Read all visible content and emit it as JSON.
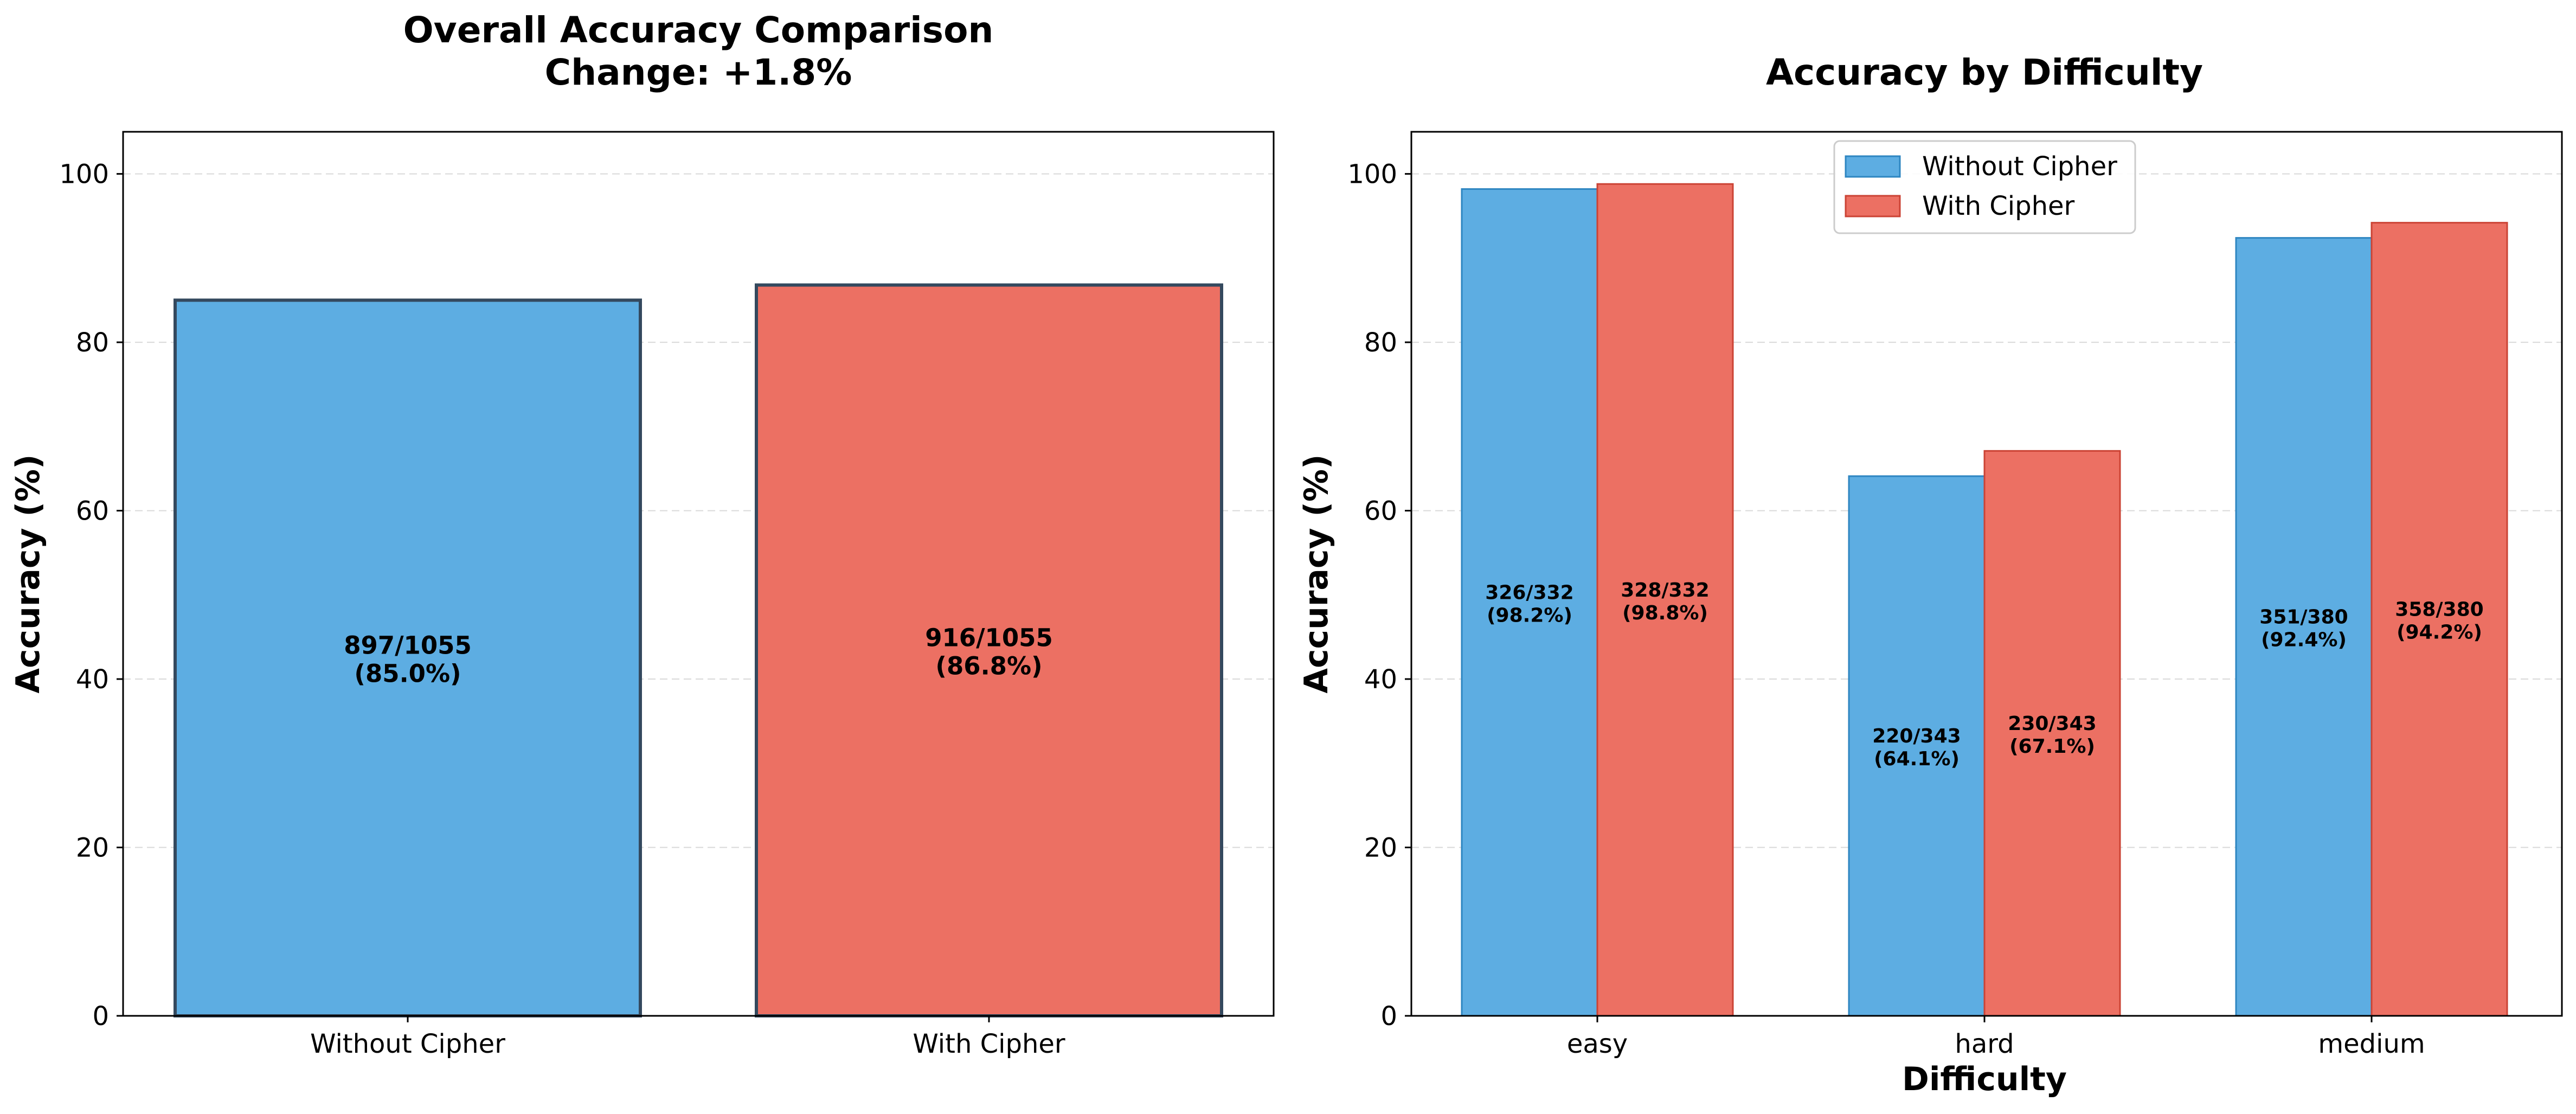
{
  "colors": {
    "without_cipher": "#5DADE2",
    "with_cipher": "#EC7063",
    "bar_edge_left": "#34495E",
    "bar_edge_blue": "#2E86C1",
    "bar_edge_red": "#CB4335",
    "grid": "#d9d9d9"
  },
  "chart_data": [
    {
      "type": "bar",
      "title": "Overall Accuracy Comparison",
      "subtitle": "Change: +1.8%",
      "xlabel": "",
      "ylabel": "Accuracy (%)",
      "ylim": [
        0,
        105
      ],
      "yticks": [
        0,
        20,
        40,
        60,
        80,
        100
      ],
      "grid": "horizontal dashed",
      "categories": [
        "Without Cipher",
        "With Cipher"
      ],
      "values": [
        85.0,
        86.8
      ],
      "data_labels": [
        {
          "line1": "897/1055",
          "line2": "(85.0%)"
        },
        {
          "line1": "916/1055",
          "line2": "(86.8%)"
        }
      ]
    },
    {
      "type": "bar",
      "title": "Accuracy by Difficulty",
      "xlabel": "Difficulty",
      "ylabel": "Accuracy (%)",
      "ylim": [
        0,
        105
      ],
      "yticks": [
        0,
        20,
        40,
        60,
        80,
        100
      ],
      "grid": "horizontal dashed",
      "legend_position": "upper-center",
      "categories": [
        "easy",
        "hard",
        "medium"
      ],
      "series": [
        {
          "name": "Without Cipher",
          "values": [
            98.2,
            64.1,
            92.4
          ],
          "data_labels": [
            {
              "line1": "326/332",
              "line2": "(98.2%)"
            },
            {
              "line1": "220/343",
              "line2": "(64.1%)"
            },
            {
              "line1": "351/380",
              "line2": "(92.4%)"
            }
          ]
        },
        {
          "name": "With Cipher",
          "values": [
            98.8,
            67.1,
            94.2
          ],
          "data_labels": [
            {
              "line1": "328/332",
              "line2": "(98.8%)"
            },
            {
              "line1": "230/343",
              "line2": "(67.1%)"
            },
            {
              "line1": "358/380",
              "line2": "(94.2%)"
            }
          ]
        }
      ]
    }
  ]
}
